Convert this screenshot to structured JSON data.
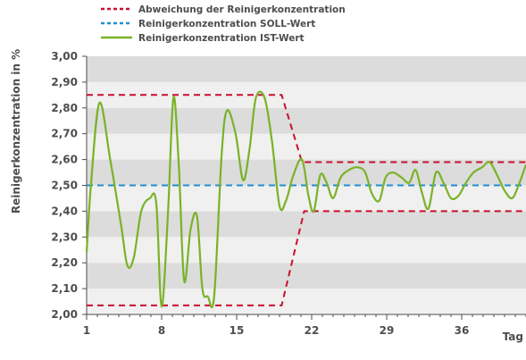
{
  "chart_data": {
    "type": "line",
    "title": "",
    "xlabel": "Tag",
    "ylabel": "Reinigerkonzentration in %",
    "xlim": [
      1,
      42
    ],
    "ylim": [
      2.0,
      3.0
    ],
    "x_ticks": [
      1,
      8,
      15,
      22,
      29,
      36
    ],
    "y_ticks": [
      "2,00",
      "2,10",
      "2,20",
      "2,30",
      "2,40",
      "2,50",
      "2,60",
      "2,70",
      "2,80",
      "2,90",
      "3,00"
    ],
    "y_tick_values": [
      2.0,
      2.1,
      2.2,
      2.3,
      2.4,
      2.5,
      2.6,
      2.7,
      2.8,
      2.9,
      3.0
    ],
    "grid": "alternating horizontal bands",
    "legend": [
      {
        "name": "Abweichung der Reinigerkonzentration",
        "color": "#c8102e",
        "style": "dotted"
      },
      {
        "name": "Reinigerkonzentration SOLL-Wert",
        "color": "#1f8fd0",
        "style": "dotted"
      },
      {
        "name": "Reinigerkonzentration IST-Wert",
        "color": "#7ab227",
        "style": "solid"
      }
    ],
    "legend_position": "top",
    "series": [
      {
        "name": "Abweichung der Reinigerkonzentration",
        "role": "upper",
        "color": "#c8102e",
        "dash": "dashed",
        "x": [
          1,
          19.2,
          21.1,
          42
        ],
        "values": [
          2.85,
          2.85,
          2.59,
          2.59
        ]
      },
      {
        "name": "Abweichung der Reinigerkonzentration",
        "role": "lower",
        "color": "#c8102e",
        "dash": "dashed",
        "x": [
          1,
          19.2,
          21.3,
          42
        ],
        "values": [
          2.035,
          2.035,
          2.4,
          2.4
        ]
      },
      {
        "name": "Reinigerkonzentration SOLL-Wert",
        "color": "#1f8fd0",
        "dash": "dashed",
        "x": [
          1,
          42
        ],
        "values": [
          2.5,
          2.5
        ]
      },
      {
        "name": "Reinigerkonzentration IST-Wert",
        "color": "#7ab227",
        "dash": "solid",
        "x": [
          1,
          1.4,
          2.2,
          3.2,
          4.2,
          4.8,
          5.4,
          6.1,
          6.9,
          7.5,
          8.0,
          8.6,
          9.1,
          9.6,
          10.1,
          10.7,
          11.3,
          11.8,
          12.3,
          12.9,
          13.6,
          14.1,
          14.9,
          15.6,
          16.2,
          16.8,
          17.6,
          18.3,
          19.0,
          19.6,
          20.3,
          21.1,
          21.7,
          22.2,
          22.8,
          23.4,
          24.0,
          24.7,
          25.5,
          26.3,
          27.0,
          27.6,
          28.3,
          28.9,
          29.6,
          30.4,
          31.1,
          31.7,
          32.3,
          32.9,
          33.6,
          34.3,
          35.0,
          35.7,
          36.4,
          37.1,
          37.9,
          38.6,
          39.3,
          40.0,
          40.7,
          41.3,
          42.0
        ],
        "values": [
          2.24,
          2.5,
          2.82,
          2.6,
          2.35,
          2.19,
          2.22,
          2.4,
          2.45,
          2.43,
          2.03,
          2.4,
          2.84,
          2.58,
          2.13,
          2.33,
          2.38,
          2.1,
          2.07,
          2.07,
          2.62,
          2.79,
          2.7,
          2.52,
          2.64,
          2.84,
          2.84,
          2.67,
          2.42,
          2.44,
          2.54,
          2.6,
          2.46,
          2.4,
          2.54,
          2.51,
          2.45,
          2.53,
          2.56,
          2.57,
          2.55,
          2.47,
          2.44,
          2.53,
          2.55,
          2.53,
          2.51,
          2.56,
          2.47,
          2.41,
          2.55,
          2.51,
          2.45,
          2.46,
          2.51,
          2.55,
          2.57,
          2.59,
          2.54,
          2.48,
          2.45,
          2.5,
          2.58
        ]
      }
    ]
  }
}
